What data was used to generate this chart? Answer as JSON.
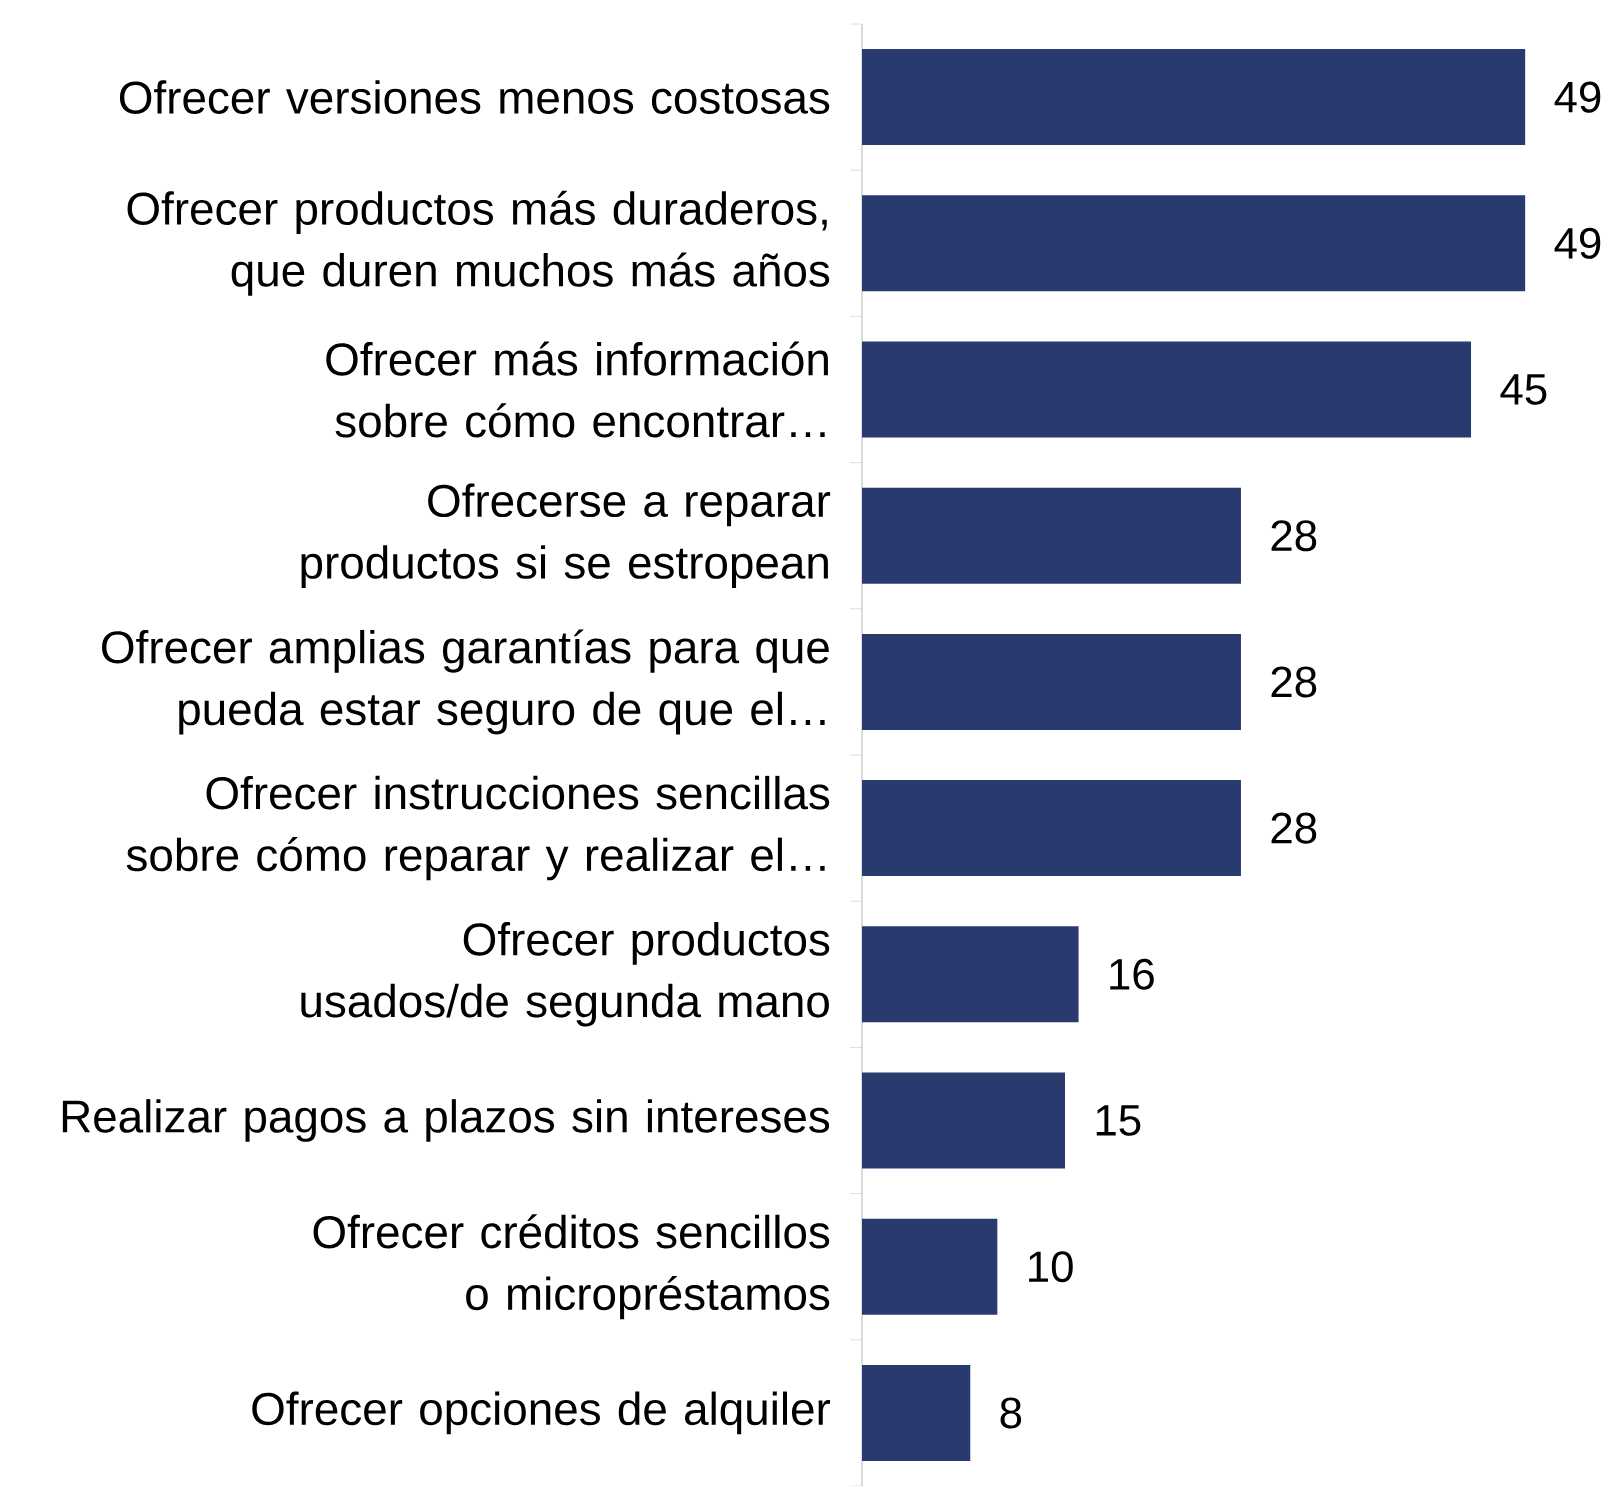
{
  "chart_data": {
    "type": "bar",
    "orientation": "horizontal",
    "color": "#283a6e",
    "data_labels": true,
    "tick_labels": "y",
    "categories": [
      "Ofrecer versiones menos costosas",
      "Ofrecer productos más duraderos, que duren muchos más años",
      "Ofrecer más información sobre cómo encontrar…",
      "Ofrecerse a reparar productos si se estropean",
      "Ofrecer amplias garantías para que pueda estar seguro de que el…",
      "Ofrecer instrucciones sencillas sobre cómo reparar y realizar el…",
      "Ofrecer productos usados/de segunda mano",
      "Realizar pagos a plazos sin intereses",
      "Ofrecer créditos sencillos o micropréstamos",
      "Ofrecer opciones de alquiler"
    ],
    "values": [
      49,
      49,
      45,
      28,
      28,
      28,
      16,
      15,
      10,
      8
    ]
  }
}
